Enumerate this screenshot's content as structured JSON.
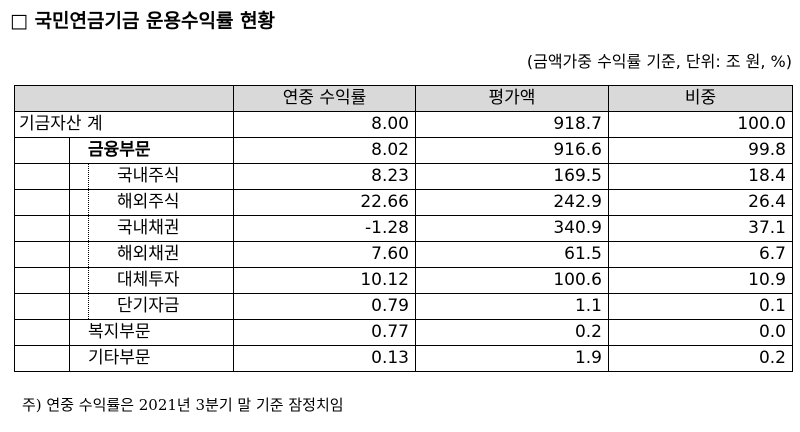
{
  "header": {
    "title": "□ 국민연금기금 운용수익률 현황",
    "unit_note": "(금액가중 수익률 기준, 단위: 조 원, %)"
  },
  "table": {
    "columns": [
      "연중 수익률",
      "평가액",
      "비중"
    ],
    "rows": [
      [
        "기금자산 계",
        "8.00",
        "918.7",
        "100.0"
      ],
      [
        "금융부문",
        "8.02",
        "916.6",
        "99.8"
      ],
      [
        "국내주식",
        "8.23",
        "169.5",
        "18.4"
      ],
      [
        "해외주식",
        "22.66",
        "242.9",
        "26.4"
      ],
      [
        "국내채권",
        "-1.28",
        "340.9",
        "37.1"
      ],
      [
        "해외채권",
        "7.60",
        "61.5",
        "6.7"
      ],
      [
        "대체투자",
        "10.12",
        "100.6",
        "10.9"
      ],
      [
        "단기자금",
        "0.79",
        "1.1",
        "0.1"
      ],
      [
        "복지부문",
        "0.77",
        "0.2",
        "0.0"
      ],
      [
        "기타부문",
        "0.13",
        "1.9",
        "0.2"
      ]
    ]
  },
  "footnote": "주) 연중 수익률은 2021년 3분기 말 기준 잠정치임"
}
